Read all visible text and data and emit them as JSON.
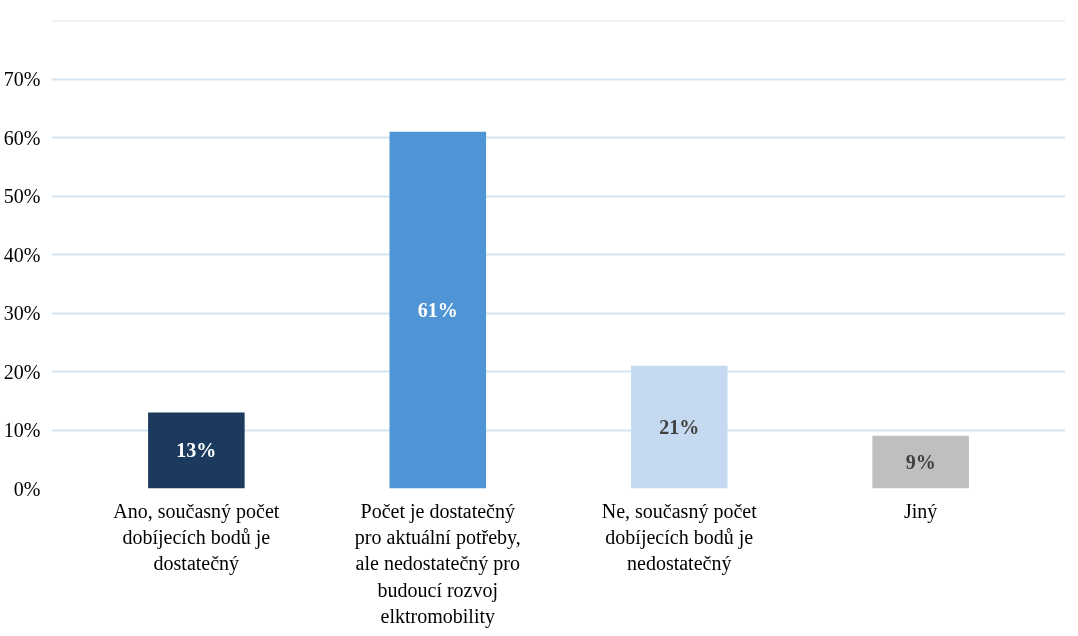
{
  "chart_data": {
    "type": "bar",
    "categories": [
      "Ano, současný počet dobíjecích bodů je dostatečný",
      "Počet je dostatečný pro aktuální potřeby, ale nedostatečný pro budoucí rozvoj elktromobility",
      "Ne, současný počet dobíjecích bodů je nedostatečný",
      "Jiný"
    ],
    "values": [
      13,
      61,
      21,
      9
    ],
    "colors": [
      "#1b3a5e",
      "#4f94d4",
      "#c5daf0",
      "#bfbfbf"
    ],
    "value_labels": [
      "13%",
      "61%",
      "21%",
      "9%"
    ],
    "ylim": [
      0,
      80
    ],
    "yticks": [
      {
        "value": 0,
        "label": "0%"
      },
      {
        "value": 10,
        "label": "10%"
      },
      {
        "value": 20,
        "label": "20%"
      },
      {
        "value": 30,
        "label": "30%"
      },
      {
        "value": 40,
        "label": "40%"
      },
      {
        "value": 50,
        "label": "50%"
      },
      {
        "value": 60,
        "label": "60%"
      },
      {
        "value": 70,
        "label": "70%"
      },
      {
        "value": 80,
        "label": null
      }
    ],
    "grid": "y"
  }
}
